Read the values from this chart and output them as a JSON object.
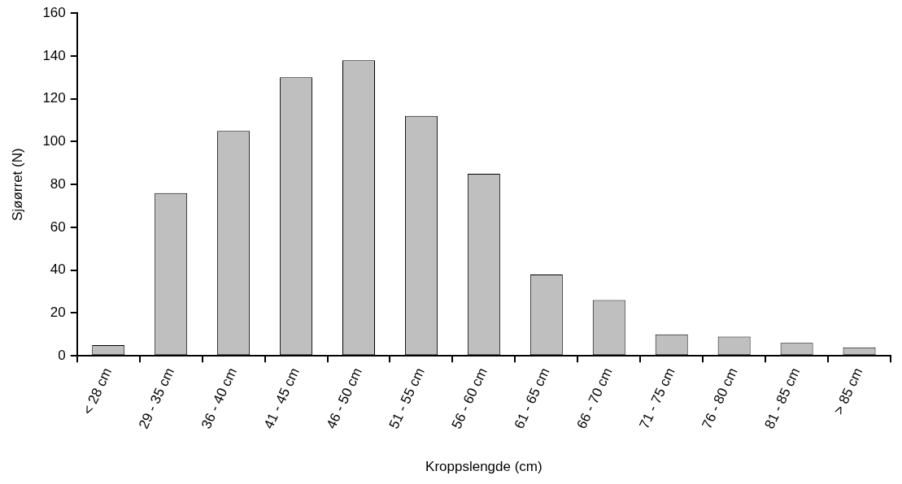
{
  "chart_data": {
    "type": "bar",
    "xlabel": "Kroppslengde (cm)",
    "ylabel": "Sjøørret (N)",
    "categories": [
      "< 28 cm",
      "29 - 35 cm",
      "36 - 40 cm",
      "41 - 45 cm",
      "46 - 50 cm",
      "51 - 55 cm",
      "56 - 60 cm",
      "61 - 65 cm",
      "66 - 70 cm",
      "71 - 75 cm",
      "76 - 80 cm",
      "81 - 85 cm",
      "> 85 cm"
    ],
    "values": [
      5,
      76,
      105,
      130,
      138,
      112,
      85,
      38,
      26,
      10,
      9,
      6,
      4
    ],
    "color": "#bfbfbf",
    "ylim": [
      0,
      160
    ],
    "yticks": [
      0,
      20,
      40,
      60,
      80,
      100,
      120,
      140,
      160
    ],
    "grid": false,
    "legend": false
  }
}
